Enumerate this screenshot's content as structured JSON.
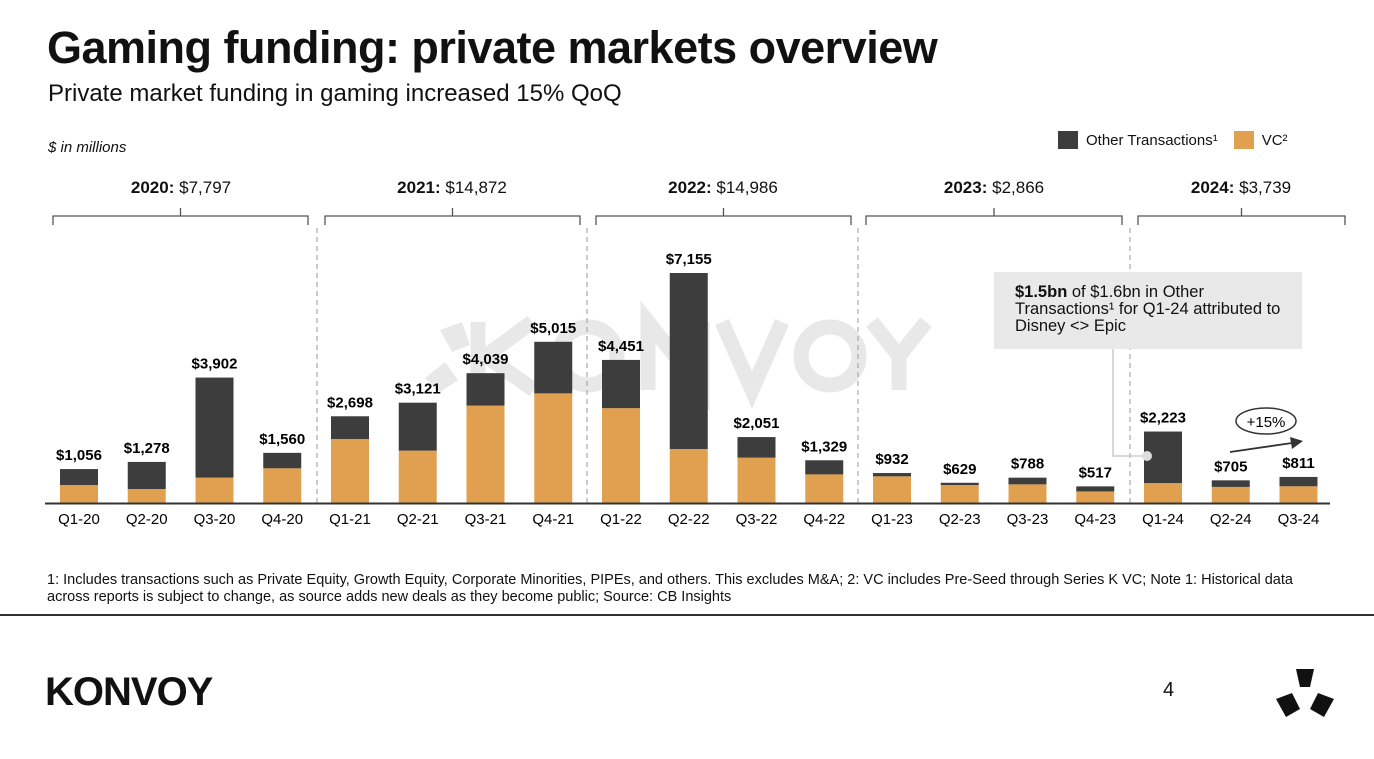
{
  "header": {
    "title": "Gaming funding: private markets overview",
    "subtitle": "Private market funding in gaming increased 15% QoQ"
  },
  "units": "$ in millions",
  "legend": [
    {
      "label": "Other Transactions¹",
      "color": "#3d3d3d"
    },
    {
      "label": "VC²",
      "color": "#e0a050"
    }
  ],
  "years": [
    {
      "year": "2020:",
      "total": "$7,797"
    },
    {
      "year": "2021:",
      "total": "$14,872"
    },
    {
      "year": "2022:",
      "total": "$14,986"
    },
    {
      "year": "2023:",
      "total": "$2,866"
    },
    {
      "year": "2024:",
      "total": "$3,739"
    }
  ],
  "callout": {
    "bold": "$1.5bn",
    "text": " of $1.6bn in Other Transactions¹ for Q1-24 attributed to Disney <> Epic"
  },
  "growth_label": "+15%",
  "watermark": "KONVOY",
  "footnote": "1: Includes transactions such as Private Equity, Growth Equity, Corporate Minorities, PIPEs, and others. This excludes M&A; 2: VC includes Pre-Seed through Series K VC; Note 1: Historical data across reports is subject to change, as source adds new deals as they become public; Source: CB Insights",
  "footer": {
    "logo": "KONVOY",
    "page": "4"
  },
  "chart_data": {
    "type": "bar",
    "stacked": true,
    "categories": [
      "Q1-20",
      "Q2-20",
      "Q3-20",
      "Q4-20",
      "Q1-21",
      "Q2-21",
      "Q3-21",
      "Q4-21",
      "Q1-22",
      "Q2-22",
      "Q3-22",
      "Q4-22",
      "Q1-23",
      "Q2-23",
      "Q3-23",
      "Q4-23",
      "Q1-24",
      "Q2-24",
      "Q3-24"
    ],
    "totals": [
      1056,
      1278,
      3902,
      1560,
      2698,
      3121,
      4039,
      5015,
      4451,
      7155,
      2051,
      1329,
      932,
      629,
      788,
      517,
      2223,
      705,
      811
    ],
    "total_labels": [
      "$1,056",
      "$1,278",
      "$3,902",
      "$1,560",
      "$2,698",
      "$3,121",
      "$4,039",
      "$5,015",
      "$4,451",
      "$7,155",
      "$2,051",
      "$1,329",
      "$932",
      "$629",
      "$788",
      "$517",
      "$2,223",
      "$705",
      "$811"
    ],
    "series": [
      {
        "name": "VC²",
        "color": "#e0a050",
        "values": [
          560,
          435,
          790,
          1080,
          1990,
          1630,
          3030,
          3410,
          2950,
          1680,
          1410,
          890,
          830,
          560,
          580,
          360,
          620,
          500,
          520
        ]
      },
      {
        "name": "Other Transactions¹",
        "color": "#3d3d3d",
        "values": [
          496,
          843,
          3112,
          480,
          708,
          1491,
          1009,
          1605,
          1501,
          5475,
          641,
          439,
          102,
          69,
          208,
          157,
          1603,
          205,
          291
        ]
      }
    ],
    "ylim": [
      0,
      7155
    ],
    "grid": false,
    "legend_position": "top-right"
  }
}
